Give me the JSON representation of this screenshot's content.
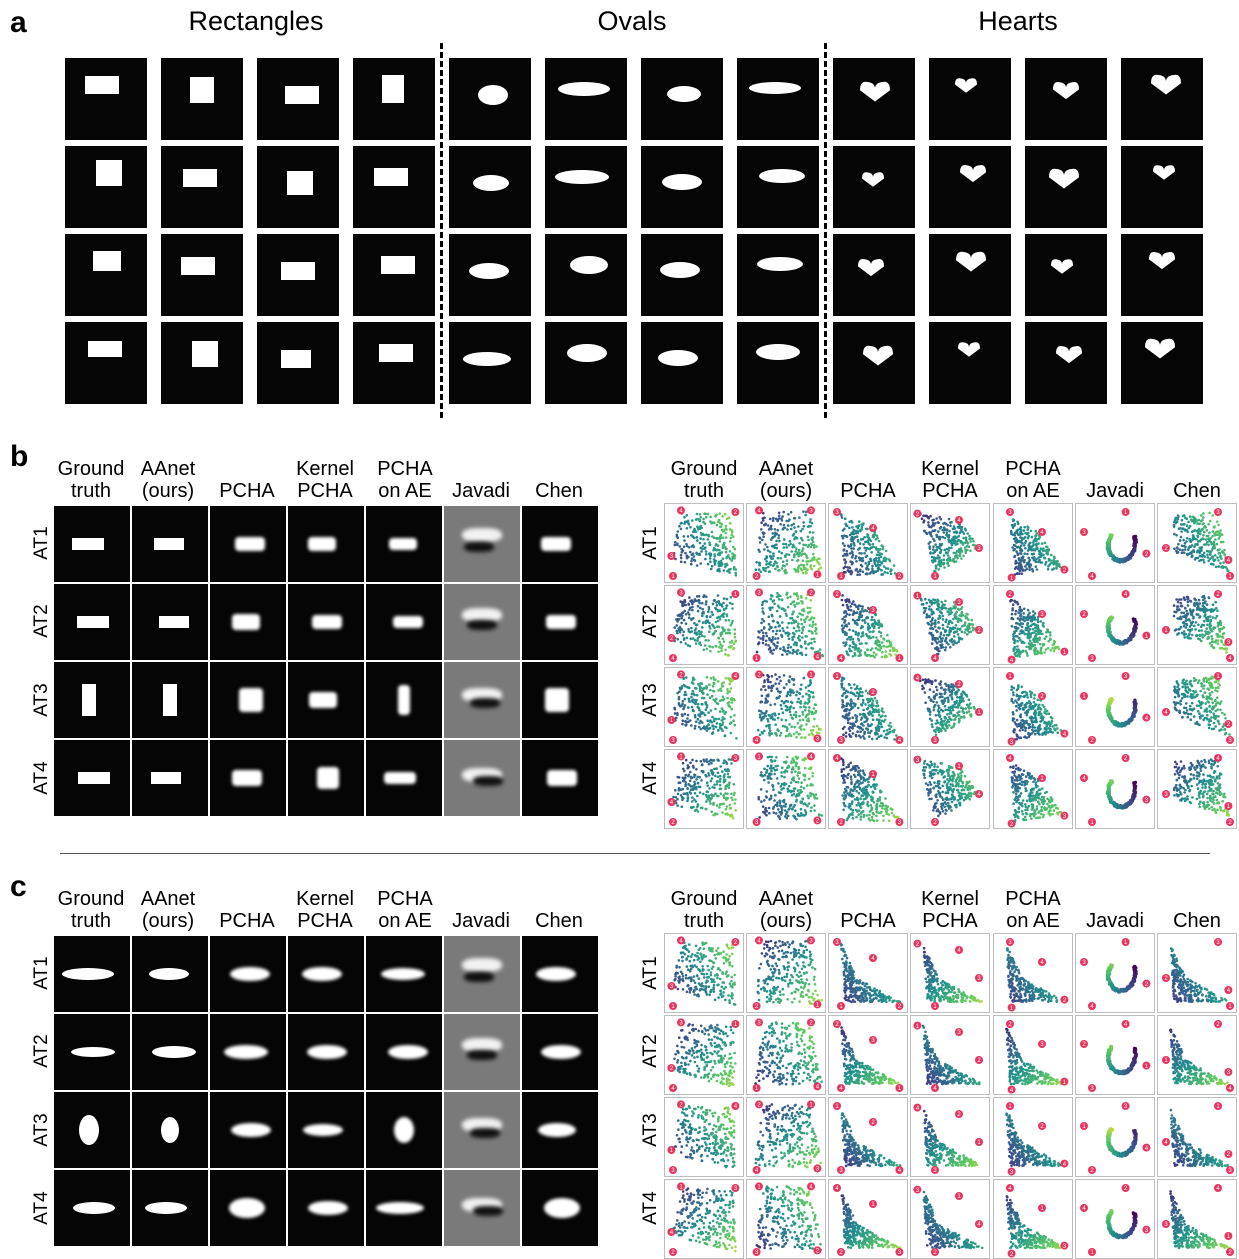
{
  "panels": {
    "a": "a",
    "b": "b",
    "c": "c"
  },
  "groups": [
    "Rectangles",
    "Ovals",
    "Hearts"
  ],
  "columns": [
    [
      "Ground",
      "truth"
    ],
    [
      "AAnet",
      "(ours)"
    ],
    [
      "",
      "PCHA"
    ],
    [
      "Kernel",
      "PCHA"
    ],
    [
      "PCHA",
      "on AE"
    ],
    [
      "",
      "Javadi"
    ],
    [
      "",
      "Chen"
    ]
  ],
  "rows": [
    "AT1",
    "AT2",
    "AT3",
    "AT4"
  ],
  "markers": [
    "1",
    "2",
    "3",
    "4"
  ],
  "colors": {
    "tile_bg": "#050505",
    "shape": "#ffffff",
    "javadi_bg": "#7a7a7a",
    "marker": "#e8345e",
    "scatter_low": "#440154",
    "scatter_mid": "#21908c",
    "scatter_high": "#fde725"
  }
}
